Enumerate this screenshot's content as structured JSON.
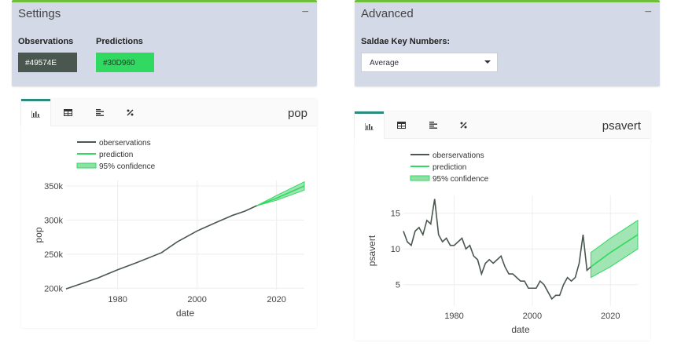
{
  "settings": {
    "title": "Settings",
    "collapse_label": "−",
    "observations_label": "Observations",
    "observations_color": "#49574E",
    "predictions_label": "Predictions",
    "predictions_color": "#30D960"
  },
  "advanced": {
    "title": "Advanced",
    "collapse_label": "−",
    "key_numbers_label": "Saldae Key Numbers:",
    "key_numbers_value": "Average"
  },
  "tabs": [
    {
      "icon": "bar-chart-icon"
    },
    {
      "icon": "table-icon"
    },
    {
      "icon": "align-left-icon"
    },
    {
      "icon": "percent-icon"
    }
  ],
  "colors": {
    "observations": "#49574E",
    "predictions": "#30D960",
    "band": "#8fe0a6",
    "tab_active": "#2a8c7e",
    "box_border": "#6fbf3c"
  },
  "chart_data": [
    {
      "type": "line",
      "title": "pop",
      "xlabel": "date",
      "ylabel": "pop",
      "legend": [
        "oberservations",
        "prediction",
        "95% confidence"
      ],
      "legend_position": "top-left",
      "xlim": [
        1967,
        2027
      ],
      "ylim": [
        198000,
        358000
      ],
      "xticks": [
        1980,
        2000,
        2020
      ],
      "yticks": [
        200000,
        250000,
        300000,
        350000
      ],
      "ytick_labels": [
        "200k",
        "250k",
        "300k",
        "350k"
      ],
      "observations": {
        "x": [
          1967,
          1975,
          1980,
          1985,
          1991,
          1995,
          2000,
          2005,
          2009,
          2012,
          2015
        ],
        "y": [
          199000,
          215000,
          227000,
          238000,
          252000,
          268000,
          284000,
          297000,
          307000,
          313000,
          321000
        ]
      },
      "prediction": {
        "x": [
          2015,
          2020,
          2027
        ],
        "y": [
          321000,
          332000,
          350000
        ]
      },
      "confidence_upper": {
        "x": [
          2015,
          2020,
          2027
        ],
        "y": [
          321000,
          336000,
          356000
        ]
      },
      "confidence_lower": {
        "x": [
          2015,
          2020,
          2027
        ],
        "y": [
          321000,
          329000,
          344000
        ]
      }
    },
    {
      "type": "line",
      "title": "psavert",
      "xlabel": "date",
      "ylabel": "psavert",
      "legend": [
        "oberservations",
        "prediction",
        "95% confidence"
      ],
      "legend_position": "top-left",
      "xlim": [
        1967,
        2027
      ],
      "ylim": [
        2,
        17.5
      ],
      "xticks": [
        1980,
        2000,
        2020
      ],
      "yticks": [
        5,
        10,
        15
      ],
      "ytick_labels": [
        "5",
        "10",
        "15"
      ],
      "observations": {
        "x": [
          1967,
          1968,
          1969,
          1970,
          1971,
          1972,
          1973,
          1974,
          1975,
          1976,
          1977,
          1978,
          1979,
          1980,
          1981,
          1982,
          1983,
          1984,
          1985,
          1986,
          1987,
          1988,
          1989,
          1990,
          1991,
          1992,
          1993,
          1994,
          1995,
          1996,
          1997,
          1998,
          1999,
          2000,
          2001,
          2002,
          2003,
          2004,
          2005,
          2006,
          2007,
          2008,
          2009,
          2010,
          2011,
          2012,
          2013,
          2014,
          2015
        ],
        "y": [
          12.5,
          11.0,
          10.5,
          12.5,
          13.0,
          12.0,
          14.0,
          13.5,
          17.0,
          12.0,
          11.0,
          11.5,
          10.5,
          10.5,
          11.0,
          11.5,
          10.0,
          10.5,
          9.0,
          8.5,
          6.5,
          8.0,
          8.5,
          8.0,
          8.5,
          9.0,
          7.5,
          6.5,
          6.5,
          6.0,
          5.5,
          5.5,
          4.5,
          4.5,
          4.5,
          5.5,
          5.0,
          4.0,
          3.0,
          3.5,
          3.5,
          5.0,
          6.0,
          5.5,
          6.0,
          8.0,
          12.0,
          7.0,
          7.5
        ]
      },
      "prediction": {
        "x": [
          2015,
          2020,
          2027
        ],
        "y": [
          7.5,
          9.5,
          12.0
        ]
      },
      "confidence_upper": {
        "x": [
          2015,
          2020,
          2027
        ],
        "y": [
          9.5,
          11.5,
          14.0
        ]
      },
      "confidence_lower": {
        "x": [
          2015,
          2020,
          2027
        ],
        "y": [
          6.0,
          7.5,
          10.0
        ]
      }
    }
  ]
}
